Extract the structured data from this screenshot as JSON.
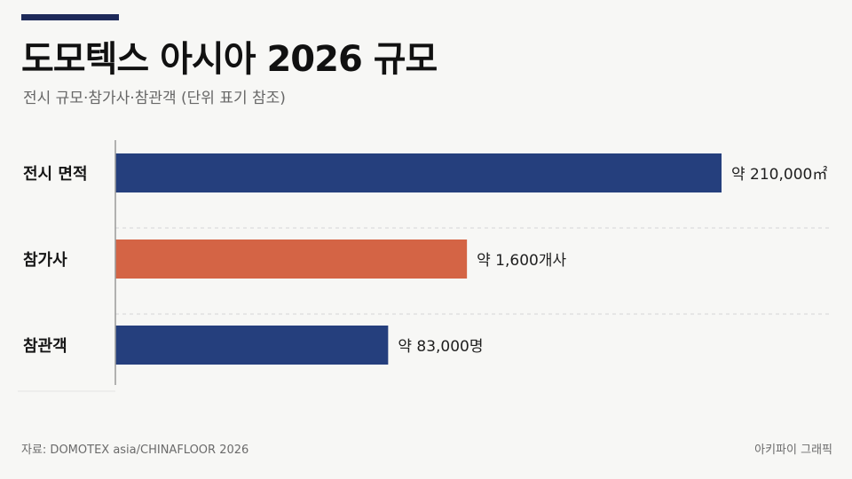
{
  "header": {
    "title": "도모텍스 아시아 2026 규모",
    "subtitle": "전시 규모·참가사·참관객 (단위 표기 참조)"
  },
  "footer": {
    "source": "자료: DOMOTEX asia/CHINAFLOOR 2026",
    "credit": "아키파이 그래픽"
  },
  "colors": {
    "accent": "#1e2a5a",
    "navy": "#253f7d",
    "orange": "#d46445",
    "gridline": "#d6d6d6",
    "axis": "#9a9a9a"
  },
  "chart_data": {
    "type": "bar",
    "orientation": "horizontal",
    "title": "도모텍스 아시아 2026 규모",
    "subtitle": "전시 규모·참가사·참관객 (단위 표기 참조)",
    "categories": [
      "전시 면적",
      "참가사",
      "참관객"
    ],
    "values": [
      210000,
      1600,
      83000
    ],
    "units": [
      "㎡",
      "개사",
      "명"
    ],
    "data_labels": [
      "약 210,000㎡",
      "약 1,600개사",
      "약 83,000명"
    ],
    "bar_fill_fraction": [
      1.0,
      0.58,
      0.45
    ],
    "bar_colors": [
      "#253f7d",
      "#d46445",
      "#253f7d"
    ],
    "grid": true,
    "legend": "none"
  }
}
